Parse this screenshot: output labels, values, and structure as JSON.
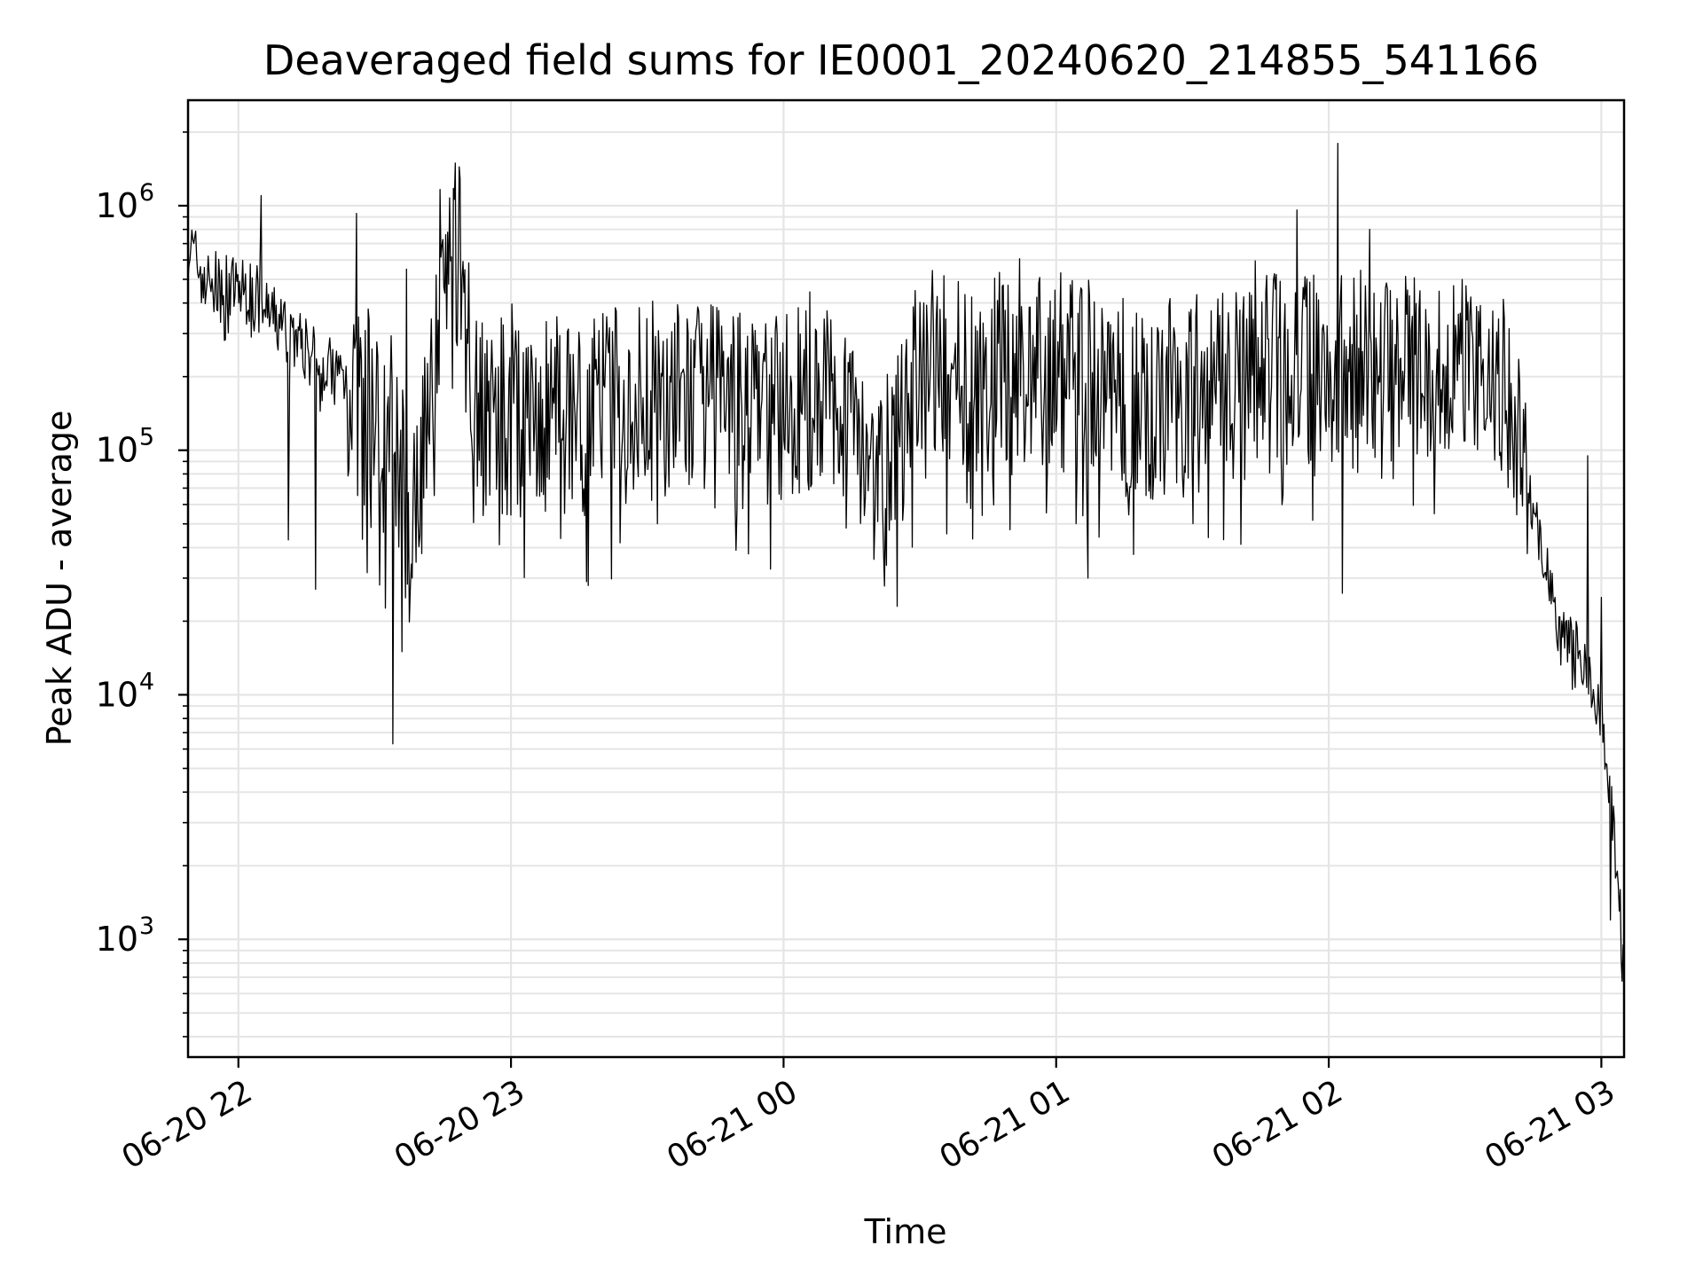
{
  "chart_data": {
    "type": "line",
    "title": "Deaveraged field sums for IE0001_20240620_214855_541166",
    "xlabel": "Time",
    "ylabel": "Peak ADU - average",
    "yscale": "log",
    "ylim": [
      330,
      2700000
    ],
    "xlim": [
      "2024-06-20 21:48:55",
      "2024-06-21 03:05:00"
    ],
    "x_ticks": [
      {
        "t": "2024-06-20 22:00",
        "label": "06-20 22"
      },
      {
        "t": "2024-06-20 23:00",
        "label": "06-20 23"
      },
      {
        "t": "2024-06-21 00:00",
        "label": "06-21 00"
      },
      {
        "t": "2024-06-21 01:00",
        "label": "06-21 01"
      },
      {
        "t": "2024-06-21 02:00",
        "label": "06-21 02"
      },
      {
        "t": "2024-06-21 03:00",
        "label": "06-21 03"
      }
    ],
    "y_ticks": [
      {
        "value": 1000,
        "base": "10",
        "exp": "3"
      },
      {
        "value": 10000,
        "base": "10",
        "exp": "4"
      },
      {
        "value": 100000,
        "base": "10",
        "exp": "5"
      },
      {
        "value": 1000000,
        "base": "10",
        "exp": "6"
      }
    ],
    "grid": true,
    "line_color": "#000000",
    "grid_color": "#e5e5e5",
    "series": [
      {
        "x": [
          "2024-06-20 21:48:55",
          "2024-06-20 21:53:00",
          "2024-06-20 21:58:00",
          "2024-06-20 22:03:00",
          "2024-06-20 22:07:00",
          "2024-06-20 22:12:00",
          "2024-06-20 22:18:00",
          "2024-06-20 22:24:00",
          "2024-06-20 22:28:00",
          "2024-06-20 22:30:00",
          "2024-06-20 22:33:00",
          "2024-06-20 22:36:00",
          "2024-06-20 22:38:00",
          "2024-06-20 22:40:00",
          "2024-06-20 22:42:00",
          "2024-06-20 22:44:00",
          "2024-06-20 22:48:00",
          "2024-06-20 22:53:00",
          "2024-06-20 23:00:00",
          "2024-06-20 23:15:00",
          "2024-06-20 23:30:00",
          "2024-06-20 23:45:00",
          "2024-06-21 00:00:00",
          "2024-06-21 00:15:00",
          "2024-06-21 00:22:00",
          "2024-06-21 00:30:00",
          "2024-06-21 00:45:00",
          "2024-06-21 01:00:00",
          "2024-06-21 01:15:00",
          "2024-06-21 01:30:00",
          "2024-06-21 01:45:00",
          "2024-06-21 02:00:00",
          "2024-06-21 02:15:00",
          "2024-06-21 02:30:00",
          "2024-06-21 02:35:00",
          "2024-06-21 02:40:00",
          "2024-06-21 02:45:00",
          "2024-06-21 02:50:00",
          "2024-06-21 02:55:00",
          "2024-06-21 03:00:00",
          "2024-06-21 03:02:00",
          "2024-06-21 03:04:00",
          "2024-06-21 03:05:00"
        ],
        "values": [
          700000,
          480000,
          460000,
          440000,
          350000,
          300000,
          220000,
          200000,
          150000,
          120000,
          130000,
          90000,
          30000,
          120000,
          190000,
          450000,
          700000,
          150000,
          130000,
          140000,
          160000,
          150000,
          150000,
          160000,
          70000,
          200000,
          200000,
          210000,
          160000,
          170000,
          200000,
          230000,
          190000,
          240000,
          180000,
          150000,
          60000,
          20000,
          15000,
          8000,
          4000,
          1500,
          600
        ],
        "spikes": [
          {
            "x": "2024-06-20 22:05:00",
            "value": 1100000
          },
          {
            "x": "2024-06-20 22:11:00",
            "value": 43000
          },
          {
            "x": "2024-06-20 22:17:00",
            "value": 27000
          },
          {
            "x": "2024-06-20 22:26:00",
            "value": 930000
          },
          {
            "x": "2024-06-20 22:34:00",
            "value": 6300
          },
          {
            "x": "2024-06-20 22:36:00",
            "value": 15000
          },
          {
            "x": "2024-06-20 22:37:00",
            "value": 550000
          },
          {
            "x": "2024-06-20 23:17:00",
            "value": 28000
          },
          {
            "x": "2024-06-21 00:25:00",
            "value": 23000
          },
          {
            "x": "2024-06-21 01:07:00",
            "value": 30000
          },
          {
            "x": "2024-06-21 01:53:00",
            "value": 960000
          },
          {
            "x": "2024-06-21 02:02:00",
            "value": 1800000
          },
          {
            "x": "2024-06-21 02:03:00",
            "value": 26000
          },
          {
            "x": "2024-06-21 02:09:00",
            "value": 800000
          },
          {
            "x": "2024-06-21 02:57:00",
            "value": 95000
          },
          {
            "x": "2024-06-21 03:00:00",
            "value": 25000
          },
          {
            "x": "2024-06-21 03:02:00",
            "value": 1200
          }
        ]
      }
    ]
  }
}
